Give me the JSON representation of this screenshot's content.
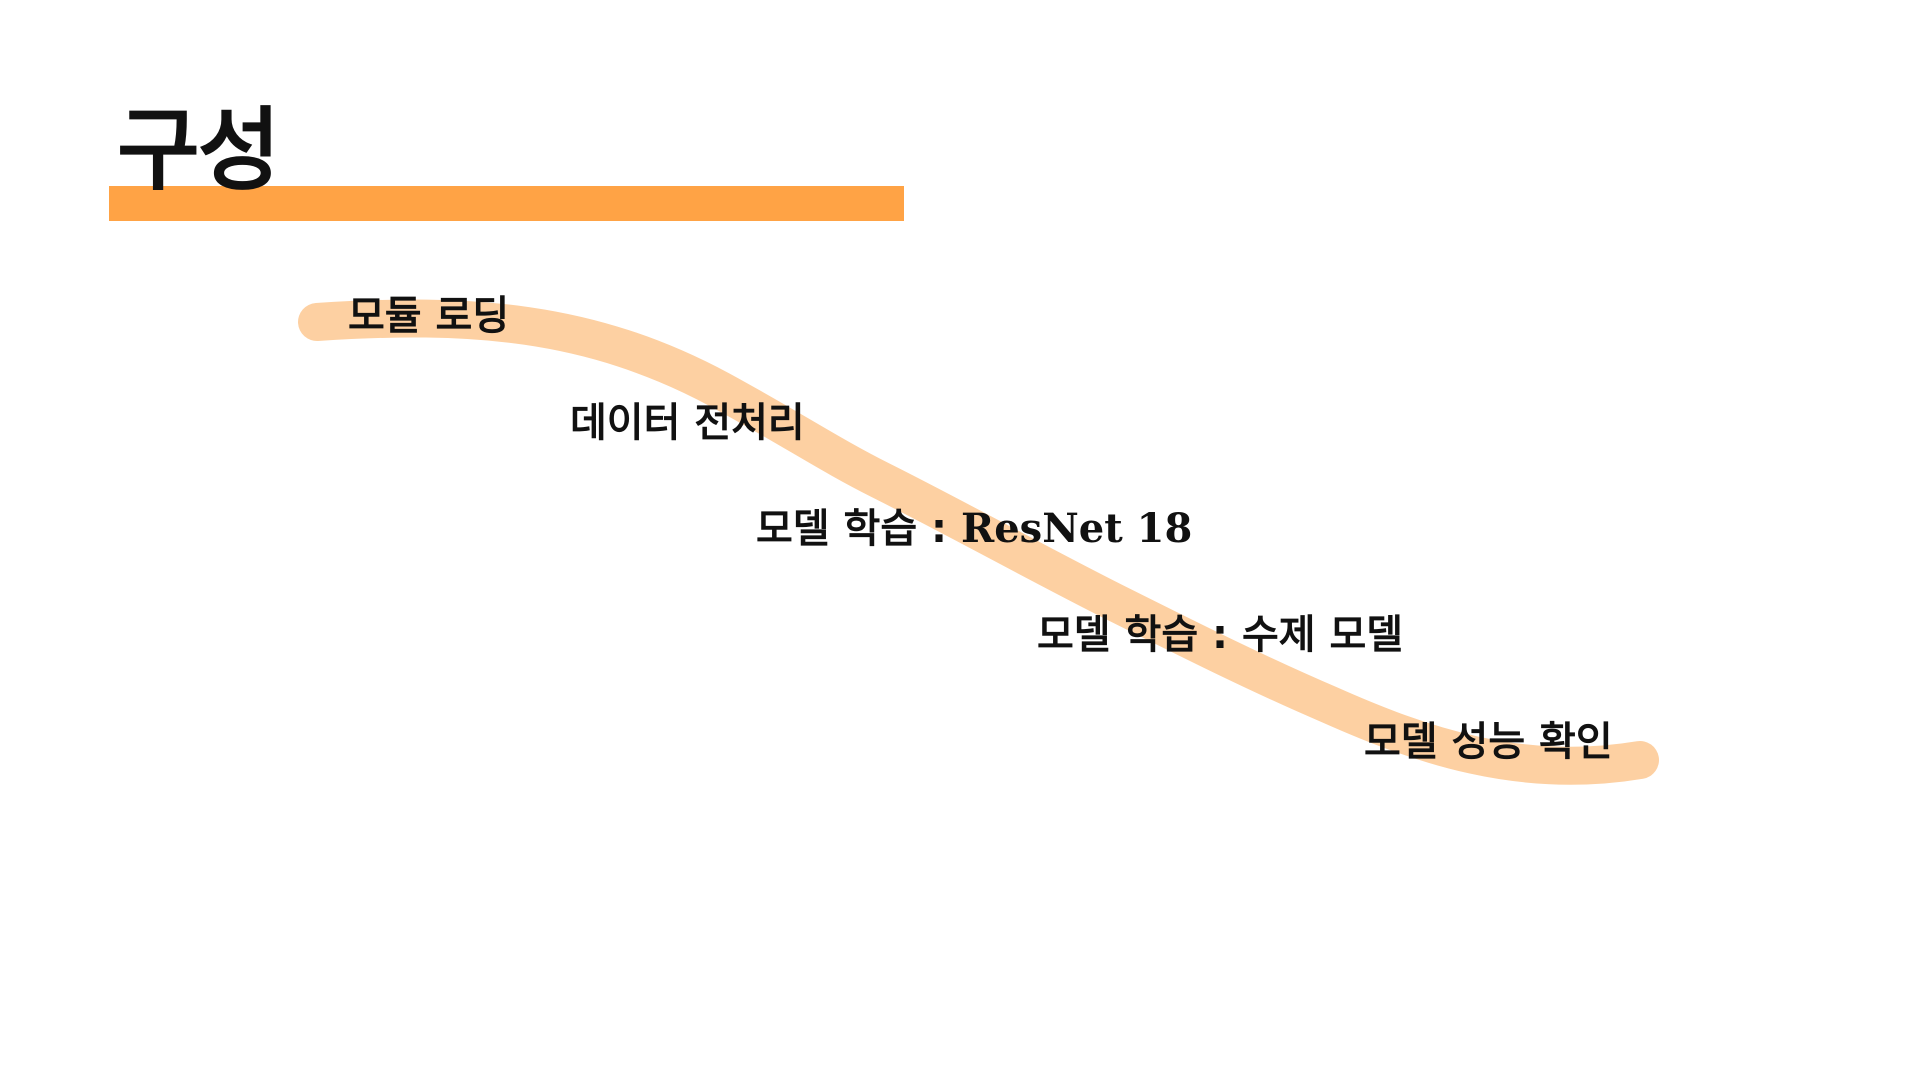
{
  "slide": {
    "title": "구성",
    "accent_color": "#ffa345",
    "wave_color": "#fdd0a2",
    "steps": [
      {
        "label": "모듈 로딩"
      },
      {
        "label": "데이터 전처리"
      },
      {
        "label": "모델 학습 : ",
        "label_latin": "ResNet 18"
      },
      {
        "label": "모델 학습 : 수제 모델"
      },
      {
        "label": "모델 성능 확인"
      }
    ]
  }
}
